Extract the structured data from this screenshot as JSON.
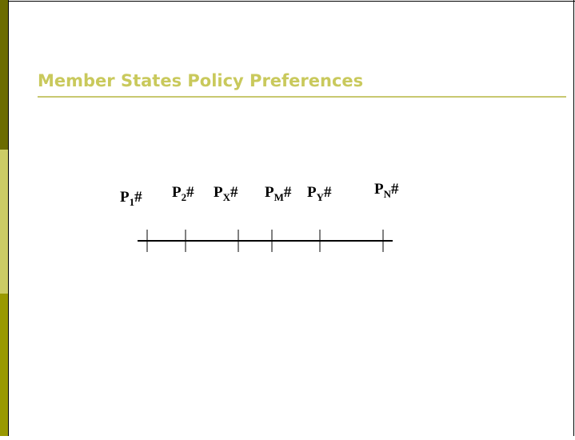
{
  "slide": {
    "title": "Member States Policy Preferences",
    "points": [
      {
        "letter": "P",
        "sub": "1",
        "suffix": "#"
      },
      {
        "letter": "P",
        "sub": "2",
        "suffix": "#"
      },
      {
        "letter": "P",
        "sub": "X",
        "suffix": "#"
      },
      {
        "letter": "P",
        "sub": "M",
        "suffix": "#"
      },
      {
        "letter": "P",
        "sub": "Y",
        "suffix": "#"
      },
      {
        "letter": "P",
        "sub": "N",
        "suffix": "#"
      }
    ]
  }
}
